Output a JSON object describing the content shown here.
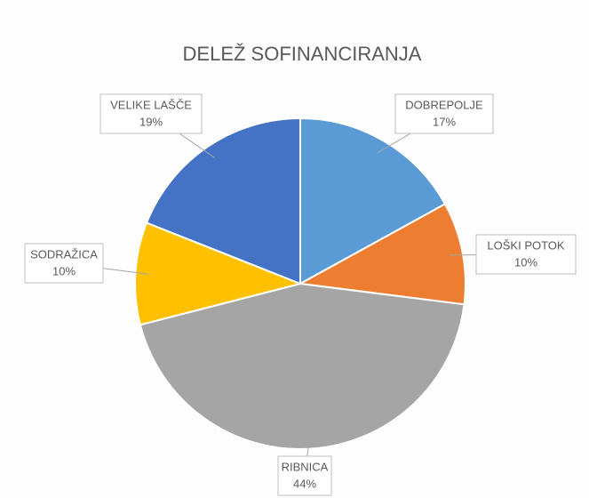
{
  "chart_data": {
    "type": "pie",
    "title": "DELEŽ SOFINANCIRANJA",
    "categories": [
      "DOBREPOLJE",
      "LOŠKI POTOK",
      "RIBNICA",
      "SODRAŽICA",
      "VELIKE LAŠČE"
    ],
    "values": [
      17,
      10,
      44,
      10,
      19
    ],
    "value_labels": [
      "17%",
      "10%",
      "44%",
      "10%",
      "19%"
    ],
    "colors": [
      "#5b9bd5",
      "#ed7d31",
      "#a5a5a5",
      "#ffc000",
      "#4472c4"
    ]
  }
}
